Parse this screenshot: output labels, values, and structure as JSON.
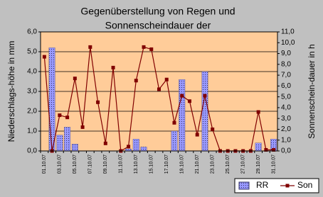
{
  "chart_data": {
    "type": "bar-line",
    "title": [
      "Gegenüberstellung von Regen und",
      "Sonnenscheindauer der"
    ],
    "ylabel": "Niederschlags-höhe in mm",
    "y2label": "Sonnenschein-dauer in h",
    "categories": [
      "01.10.07",
      null,
      "03.10.07",
      null,
      "05.10.07",
      null,
      "07.10.07",
      null,
      "09.10.07",
      null,
      "11.10.07",
      null,
      "13.10.07",
      null,
      "15.10.07",
      null,
      "17.10.07",
      null,
      "19.10.07",
      null,
      "21.10.07",
      null,
      "23.10.07",
      null,
      "25.10.07",
      null,
      "27.10.07",
      null,
      "29.10.07",
      null,
      "31.10.07"
    ],
    "series": [
      {
        "name": "RR",
        "type": "bar",
        "color": "#9999ff",
        "values": [
          0,
          5.2,
          0.8,
          1.2,
          0.35,
          0,
          0,
          0,
          0,
          0,
          0,
          0.1,
          0.6,
          0.2,
          0,
          0,
          0,
          1.0,
          3.6,
          0,
          0,
          4.0,
          0,
          0,
          0,
          0,
          0,
          0,
          0.4,
          0,
          0.6
        ]
      },
      {
        "name": "Son",
        "type": "line",
        "axis": "y2",
        "color": "#800000",
        "values": [
          8.7,
          0,
          3.3,
          3.1,
          6.7,
          2.2,
          9.6,
          4.5,
          0.7,
          7.7,
          0,
          0.4,
          6.5,
          9.6,
          9.4,
          5.7,
          6.6,
          2.6,
          5.1,
          4.6,
          1.5,
          5.1,
          2.0,
          0,
          0,
          0,
          0,
          0,
          3.6,
          0.1,
          0.1
        ]
      }
    ],
    "ylim": [
      0,
      6
    ],
    "yticks": [
      {
        "value": 0,
        "label": "0,0"
      },
      {
        "value": 1,
        "label": "1,0"
      },
      {
        "value": 2,
        "label": "2,0"
      },
      {
        "value": 3,
        "label": "3,0"
      },
      {
        "value": 4,
        "label": "4,0"
      },
      {
        "value": 5,
        "label": "5,0"
      },
      {
        "value": 6,
        "label": "6,0"
      }
    ],
    "y2lim": [
      0,
      11
    ],
    "y2ticks": [
      {
        "value": 0,
        "label": "0,0"
      },
      {
        "value": 1,
        "label": "1,0"
      },
      {
        "value": 2,
        "label": "2,0"
      },
      {
        "value": 3,
        "label": "3,0"
      },
      {
        "value": 4,
        "label": "4,0"
      },
      {
        "value": 5,
        "label": "5,0"
      },
      {
        "value": 6,
        "label": "6,0"
      },
      {
        "value": 7,
        "label": "7,0"
      },
      {
        "value": 8,
        "label": "8,0"
      },
      {
        "value": 9,
        "label": "9,0"
      },
      {
        "value": 10,
        "label": "10,0"
      },
      {
        "value": 11,
        "label": "11,0"
      }
    ],
    "plot_background": "#ffcc99",
    "legend": "bottom-right"
  }
}
